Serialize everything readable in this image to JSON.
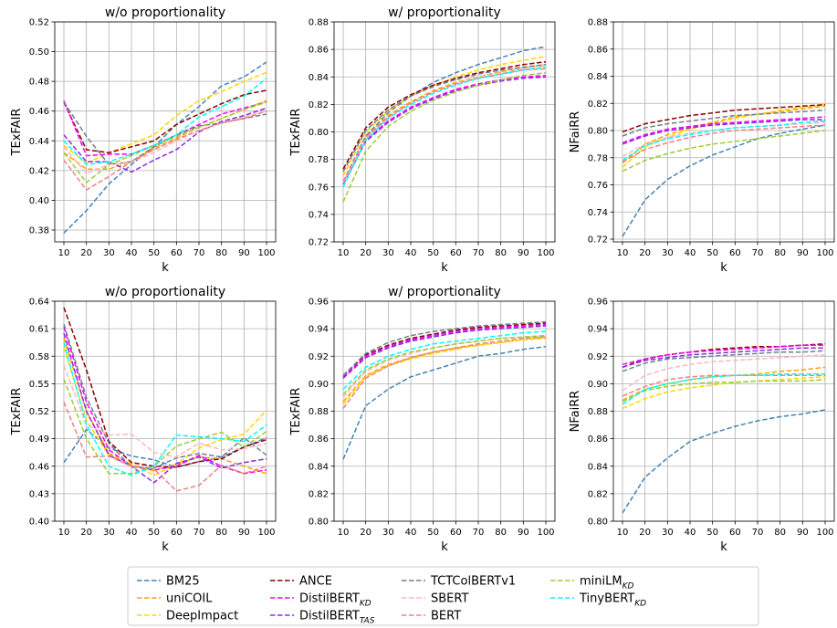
{
  "series_defs": [
    {
      "key": "bm25",
      "name": "BM25",
      "sub": "",
      "color": "#4682B4"
    },
    {
      "key": "unicoil",
      "name": "uniCOIL",
      "sub": "",
      "color": "#FFA500"
    },
    {
      "key": "deepimpact",
      "name": "DeepImpact",
      "sub": "",
      "color": "#FFD700"
    },
    {
      "key": "ance",
      "name": "ANCE",
      "sub": "",
      "color": "#8B0000"
    },
    {
      "key": "distilkd",
      "name": "DistilBERT",
      "sub": "KD",
      "color": "#FF00FF"
    },
    {
      "key": "distiltas",
      "name": "DistilBERT",
      "sub": "TAS",
      "color": "#8A2BE2"
    },
    {
      "key": "tctcol",
      "name": "TCTColBERTv1",
      "sub": "",
      "color": "#708090"
    },
    {
      "key": "sbert",
      "name": "SBERT",
      "sub": "",
      "color": "#FFB6C1"
    },
    {
      "key": "bert",
      "name": "BERT",
      "sub": "",
      "color": "#F08080"
    },
    {
      "key": "minilm",
      "name": "miniLM",
      "sub": "KD",
      "color": "#9ACD32"
    },
    {
      "key": "tinybert",
      "name": "TinyBERT",
      "sub": "KD",
      "color": "#00FFFF"
    }
  ],
  "chart_data": [
    {
      "type": "line",
      "title": "w/o proportionality",
      "xlabel": "k",
      "ylabel": "TExFAIR",
      "x": [
        10,
        20,
        30,
        40,
        50,
        60,
        70,
        80,
        90,
        100
      ],
      "xlim": [
        10,
        100
      ],
      "ylim": [
        0.372,
        0.52
      ],
      "yticks": [
        0.38,
        0.4,
        0.42,
        0.44,
        0.46,
        0.48,
        0.5,
        0.52
      ],
      "ydec": 2,
      "grid": true,
      "series": {
        "bm25": [
          0.378,
          0.393,
          0.411,
          0.424,
          0.436,
          0.451,
          0.463,
          0.477,
          0.483,
          0.493
        ],
        "unicoil": [
          0.432,
          0.421,
          0.421,
          0.426,
          0.435,
          0.442,
          0.449,
          0.455,
          0.461,
          0.467
        ],
        "deepimpact": [
          0.437,
          0.425,
          0.432,
          0.438,
          0.444,
          0.457,
          0.467,
          0.473,
          0.48,
          0.486
        ],
        "ance": [
          0.466,
          0.434,
          0.432,
          0.436,
          0.44,
          0.451,
          0.458,
          0.465,
          0.471,
          0.474
        ],
        "distilkd": [
          0.467,
          0.43,
          0.431,
          0.431,
          0.437,
          0.444,
          0.451,
          0.458,
          0.462,
          0.466
        ],
        "distiltas": [
          0.444,
          0.426,
          0.426,
          0.419,
          0.427,
          0.434,
          0.446,
          0.453,
          0.457,
          0.462
        ],
        "tctcol": [
          0.466,
          0.443,
          0.424,
          0.426,
          0.436,
          0.444,
          0.45,
          0.452,
          0.455,
          0.458
        ],
        "sbert": [
          0.436,
          0.418,
          0.424,
          0.426,
          0.432,
          0.44,
          0.447,
          0.452,
          0.456,
          0.46
        ],
        "bert": [
          0.427,
          0.407,
          0.416,
          0.426,
          0.434,
          0.441,
          0.447,
          0.452,
          0.455,
          0.46
        ],
        "minilm": [
          0.432,
          0.412,
          0.424,
          0.43,
          0.437,
          0.443,
          0.449,
          0.455,
          0.461,
          0.466
        ],
        "tinybert": [
          0.44,
          0.424,
          0.426,
          0.431,
          0.437,
          0.444,
          0.456,
          0.463,
          0.47,
          0.482
        ]
      }
    },
    {
      "type": "line",
      "title": "w/ proportionality",
      "xlabel": "k",
      "ylabel": "TExFAIR",
      "x": [
        10,
        20,
        30,
        40,
        50,
        60,
        70,
        80,
        90,
        100
      ],
      "xlim": [
        10,
        100
      ],
      "ylim": [
        0.72,
        0.88
      ],
      "yticks": [
        0.72,
        0.74,
        0.76,
        0.78,
        0.8,
        0.82,
        0.84,
        0.86,
        0.88
      ],
      "ydec": 2,
      "grid": true,
      "series": {
        "bm25": [
          0.764,
          0.797,
          0.814,
          0.826,
          0.836,
          0.843,
          0.849,
          0.854,
          0.859,
          0.862
        ],
        "unicoil": [
          0.763,
          0.796,
          0.812,
          0.822,
          0.83,
          0.836,
          0.84,
          0.844,
          0.847,
          0.849
        ],
        "deepimpact": [
          0.768,
          0.8,
          0.815,
          0.826,
          0.834,
          0.84,
          0.845,
          0.849,
          0.852,
          0.855
        ],
        "ance": [
          0.773,
          0.803,
          0.818,
          0.827,
          0.834,
          0.839,
          0.843,
          0.846,
          0.849,
          0.851
        ],
        "distilkd": [
          0.763,
          0.794,
          0.808,
          0.818,
          0.825,
          0.831,
          0.835,
          0.838,
          0.84,
          0.841
        ],
        "distiltas": [
          0.762,
          0.793,
          0.807,
          0.817,
          0.824,
          0.83,
          0.834,
          0.837,
          0.839,
          0.84
        ],
        "tctcol": [
          0.771,
          0.801,
          0.816,
          0.826,
          0.833,
          0.838,
          0.842,
          0.845,
          0.847,
          0.849
        ],
        "sbert": [
          0.763,
          0.795,
          0.81,
          0.821,
          0.829,
          0.835,
          0.84,
          0.843,
          0.846,
          0.848
        ],
        "bert": [
          0.764,
          0.796,
          0.811,
          0.821,
          0.829,
          0.835,
          0.839,
          0.842,
          0.845,
          0.846
        ],
        "minilm": [
          0.749,
          0.786,
          0.804,
          0.815,
          0.823,
          0.829,
          0.834,
          0.838,
          0.841,
          0.843
        ],
        "tinybert": [
          0.76,
          0.794,
          0.81,
          0.82,
          0.828,
          0.834,
          0.839,
          0.842,
          0.845,
          0.847
        ]
      }
    },
    {
      "type": "line",
      "title": "",
      "xlabel": "k",
      "ylabel": "NFaiRR",
      "x": [
        10,
        20,
        30,
        40,
        50,
        60,
        70,
        80,
        90,
        100
      ],
      "xlim": [
        10,
        100
      ],
      "ylim": [
        0.718,
        0.88
      ],
      "yticks": [
        0.72,
        0.74,
        0.76,
        0.78,
        0.8,
        0.82,
        0.84,
        0.86,
        0.88
      ],
      "ydec": 2,
      "grid": true,
      "series": {
        "bm25": [
          0.722,
          0.749,
          0.764,
          0.774,
          0.782,
          0.788,
          0.794,
          0.798,
          0.801,
          0.804
        ],
        "unicoil": [
          0.776,
          0.79,
          0.797,
          0.802,
          0.806,
          0.81,
          0.812,
          0.814,
          0.816,
          0.818
        ],
        "deepimpact": [
          0.773,
          0.788,
          0.795,
          0.801,
          0.805,
          0.809,
          0.812,
          0.815,
          0.817,
          0.819
        ],
        "ance": [
          0.799,
          0.805,
          0.808,
          0.811,
          0.813,
          0.815,
          0.816,
          0.817,
          0.818,
          0.819
        ],
        "distilkd": [
          0.791,
          0.797,
          0.801,
          0.803,
          0.805,
          0.806,
          0.807,
          0.808,
          0.809,
          0.81
        ],
        "distiltas": [
          0.79,
          0.796,
          0.8,
          0.802,
          0.804,
          0.805,
          0.806,
          0.807,
          0.808,
          0.808
        ],
        "tctcol": [
          0.796,
          0.802,
          0.805,
          0.807,
          0.809,
          0.811,
          0.812,
          0.813,
          0.814,
          0.815
        ],
        "sbert": [
          0.781,
          0.79,
          0.795,
          0.798,
          0.8,
          0.802,
          0.803,
          0.804,
          0.805,
          0.806
        ],
        "bert": [
          0.777,
          0.786,
          0.791,
          0.795,
          0.798,
          0.8,
          0.801,
          0.802,
          0.803,
          0.804
        ],
        "minilm": [
          0.77,
          0.778,
          0.783,
          0.787,
          0.79,
          0.792,
          0.794,
          0.796,
          0.798,
          0.8
        ],
        "tinybert": [
          0.778,
          0.789,
          0.794,
          0.797,
          0.8,
          0.802,
          0.803,
          0.804,
          0.806,
          0.807
        ]
      }
    },
    {
      "type": "line",
      "title": "w/o proportionality",
      "xlabel": "k",
      "ylabel": "TExFAIR",
      "x": [
        10,
        20,
        30,
        40,
        50,
        60,
        70,
        80,
        90,
        100
      ],
      "xlim": [
        10,
        100
      ],
      "ylim": [
        0.4,
        0.64
      ],
      "yticks": [
        0.4,
        0.43,
        0.46,
        0.49,
        0.52,
        0.55,
        0.58,
        0.61,
        0.64
      ],
      "ydec": 2,
      "grid": true,
      "series": {
        "bm25": [
          0.464,
          0.5,
          0.48,
          0.471,
          0.467,
          0.459,
          0.465,
          0.47,
          0.481,
          0.491
        ],
        "unicoil": [
          0.6,
          0.52,
          0.474,
          0.462,
          0.455,
          0.462,
          0.47,
          0.468,
          0.46,
          0.452
        ],
        "deepimpact": [
          0.59,
          0.51,
          0.472,
          0.463,
          0.45,
          0.462,
          0.48,
          0.489,
          0.495,
          0.521
        ],
        "ance": [
          0.633,
          0.565,
          0.487,
          0.464,
          0.46,
          0.459,
          0.465,
          0.468,
          0.481,
          0.489
        ],
        "distilkd": [
          0.612,
          0.53,
          0.478,
          0.46,
          0.456,
          0.46,
          0.472,
          0.46,
          0.452,
          0.456
        ],
        "distiltas": [
          0.605,
          0.52,
          0.472,
          0.46,
          0.442,
          0.463,
          0.47,
          0.458,
          0.464,
          0.468
        ],
        "tctcol": [
          0.615,
          0.535,
          0.485,
          0.459,
          0.458,
          0.469,
          0.474,
          0.47,
          0.491,
          0.472
        ],
        "sbert": [
          0.57,
          0.505,
          0.494,
          0.495,
          0.475,
          0.47,
          0.485,
          0.478,
          0.479,
          0.485
        ],
        "bert": [
          0.53,
          0.47,
          0.471,
          0.46,
          0.457,
          0.433,
          0.439,
          0.461,
          0.452,
          0.46
        ],
        "minilm": [
          0.555,
          0.49,
          0.452,
          0.452,
          0.46,
          0.482,
          0.49,
          0.497,
          0.481,
          0.498
        ],
        "tinybert": [
          0.595,
          0.505,
          0.46,
          0.45,
          0.46,
          0.494,
          0.492,
          0.49,
          0.487,
          0.505
        ]
      }
    },
    {
      "type": "line",
      "title": "w/ proportionality",
      "xlabel": "k",
      "ylabel": "TExFAIR",
      "x": [
        10,
        20,
        30,
        40,
        50,
        60,
        70,
        80,
        90,
        100
      ],
      "xlim": [
        10,
        100
      ],
      "ylim": [
        0.8,
        0.96
      ],
      "yticks": [
        0.8,
        0.82,
        0.84,
        0.86,
        0.88,
        0.9,
        0.92,
        0.94,
        0.96
      ],
      "ydec": 2,
      "grid": true,
      "series": {
        "bm25": [
          0.845,
          0.884,
          0.896,
          0.905,
          0.91,
          0.915,
          0.92,
          0.922,
          0.925,
          0.927
        ],
        "unicoil": [
          0.887,
          0.906,
          0.914,
          0.919,
          0.923,
          0.926,
          0.928,
          0.93,
          0.932,
          0.934
        ],
        "deepimpact": [
          0.885,
          0.905,
          0.913,
          0.918,
          0.922,
          0.925,
          0.928,
          0.93,
          0.932,
          0.933
        ],
        "ance": [
          0.906,
          0.921,
          0.928,
          0.933,
          0.936,
          0.939,
          0.941,
          0.942,
          0.943,
          0.944
        ],
        "distilkd": [
          0.905,
          0.92,
          0.927,
          0.932,
          0.935,
          0.938,
          0.94,
          0.941,
          0.942,
          0.943
        ],
        "distiltas": [
          0.904,
          0.919,
          0.926,
          0.931,
          0.934,
          0.937,
          0.939,
          0.94,
          0.941,
          0.942
        ],
        "tctcol": [
          0.906,
          0.922,
          0.93,
          0.935,
          0.938,
          0.94,
          0.942,
          0.943,
          0.944,
          0.945
        ],
        "sbert": [
          0.89,
          0.909,
          0.917,
          0.922,
          0.926,
          0.929,
          0.931,
          0.933,
          0.934,
          0.935
        ],
        "bert": [
          0.882,
          0.904,
          0.913,
          0.919,
          0.923,
          0.926,
          0.929,
          0.931,
          0.933,
          0.934
        ],
        "minilm": [
          0.892,
          0.91,
          0.918,
          0.923,
          0.926,
          0.929,
          0.931,
          0.933,
          0.934,
          0.935
        ],
        "tinybert": [
          0.896,
          0.912,
          0.92,
          0.925,
          0.929,
          0.931,
          0.933,
          0.935,
          0.937,
          0.938
        ]
      }
    },
    {
      "type": "line",
      "title": "",
      "xlabel": "k",
      "ylabel": "NFaiRR",
      "x": [
        10,
        20,
        30,
        40,
        50,
        60,
        70,
        80,
        90,
        100
      ],
      "xlim": [
        10,
        100
      ],
      "ylim": [
        0.8,
        0.96
      ],
      "yticks": [
        0.8,
        0.82,
        0.84,
        0.86,
        0.88,
        0.9,
        0.92,
        0.94,
        0.96
      ],
      "ydec": 2,
      "grid": true,
      "series": {
        "bm25": [
          0.806,
          0.832,
          0.846,
          0.858,
          0.864,
          0.869,
          0.873,
          0.876,
          0.878,
          0.881
        ],
        "unicoil": [
          0.888,
          0.896,
          0.9,
          0.903,
          0.905,
          0.906,
          0.907,
          0.909,
          0.91,
          0.912
        ],
        "deepimpact": [
          0.882,
          0.889,
          0.894,
          0.897,
          0.899,
          0.901,
          0.902,
          0.903,
          0.904,
          0.905
        ],
        "ance": [
          0.912,
          0.918,
          0.921,
          0.923,
          0.925,
          0.926,
          0.927,
          0.927,
          0.928,
          0.929
        ],
        "distilkd": [
          0.914,
          0.918,
          0.921,
          0.923,
          0.924,
          0.925,
          0.926,
          0.927,
          0.928,
          0.928
        ],
        "distiltas": [
          0.912,
          0.917,
          0.919,
          0.921,
          0.922,
          0.923,
          0.924,
          0.925,
          0.926,
          0.926
        ],
        "tctcol": [
          0.909,
          0.915,
          0.918,
          0.919,
          0.92,
          0.921,
          0.922,
          0.923,
          0.923,
          0.924
        ],
        "sbert": [
          0.895,
          0.906,
          0.911,
          0.914,
          0.916,
          0.917,
          0.918,
          0.919,
          0.92,
          0.921
        ],
        "bert": [
          0.891,
          0.898,
          0.903,
          0.905,
          0.906,
          0.906,
          0.906,
          0.906,
          0.906,
          0.906
        ],
        "minilm": [
          0.887,
          0.895,
          0.898,
          0.9,
          0.901,
          0.901,
          0.902,
          0.902,
          0.902,
          0.903
        ],
        "tinybert": [
          0.885,
          0.896,
          0.9,
          0.903,
          0.905,
          0.906,
          0.906,
          0.907,
          0.907,
          0.907
        ]
      }
    }
  ]
}
